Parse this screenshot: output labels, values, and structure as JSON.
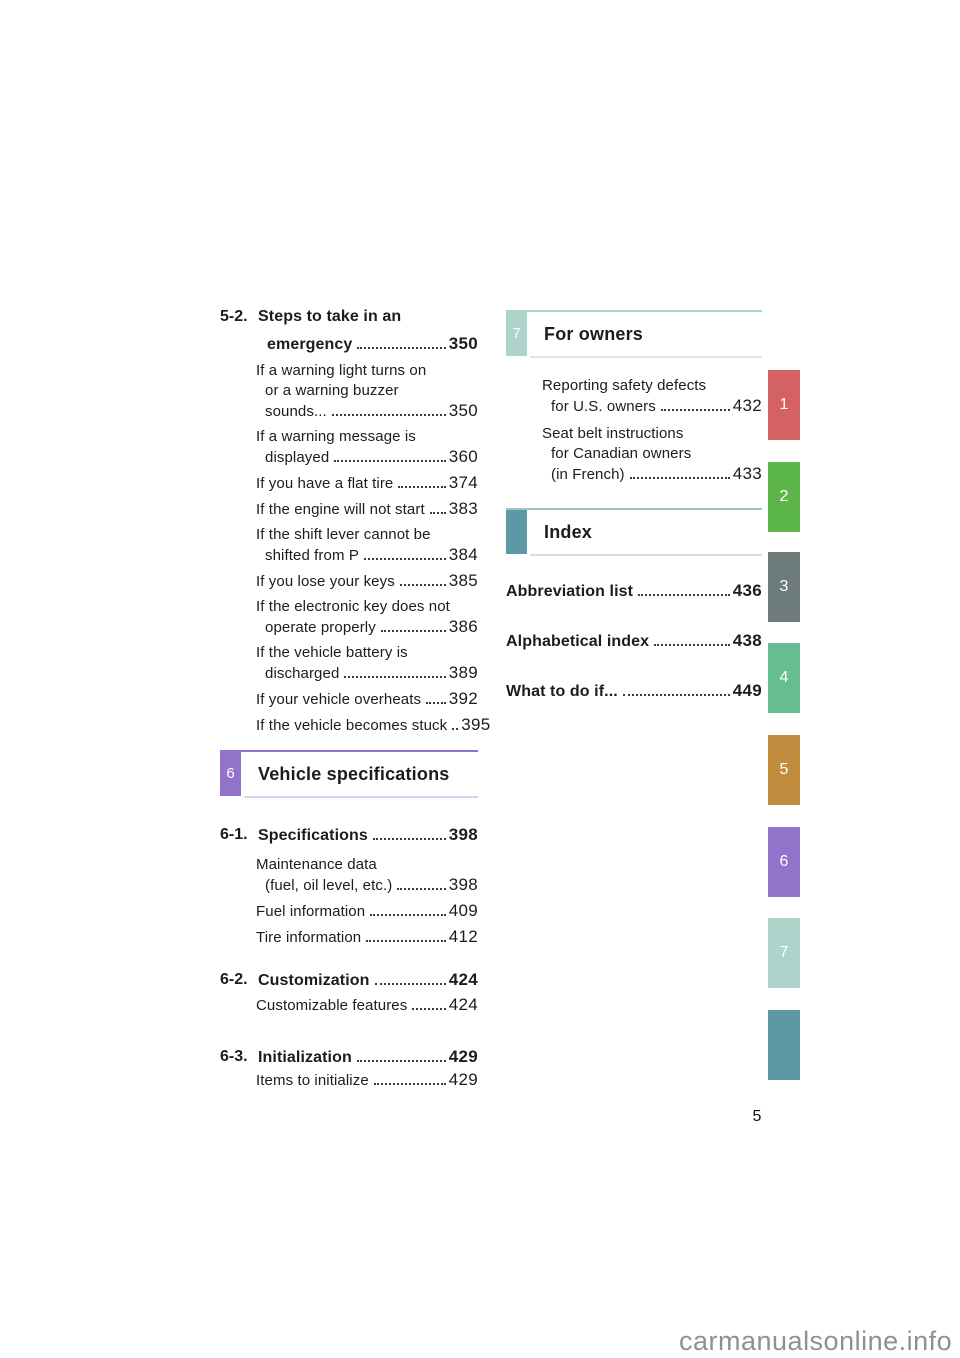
{
  "page": {
    "number": "5",
    "watermark": "carmanualsonline.info"
  },
  "left_column": {
    "section_5_2": {
      "num": "5-2.",
      "lines": [
        "Steps to take in an",
        "emergency"
      ],
      "page": "350"
    },
    "emergency_entries": [
      {
        "lines": [
          "If a warning light turns on",
          "or a warning buzzer",
          "sounds..."
        ],
        "page": "350"
      },
      {
        "lines": [
          "If a warning message is",
          "displayed"
        ],
        "page": "360"
      },
      {
        "lines": [
          "If you have a flat tire"
        ],
        "page": "374"
      },
      {
        "lines": [
          "If the engine will not start"
        ],
        "page": "383"
      },
      {
        "lines": [
          "If the shift lever cannot be",
          "shifted from P"
        ],
        "page": "384"
      },
      {
        "lines": [
          "If you lose your keys"
        ],
        "page": "385"
      },
      {
        "lines": [
          "If the electronic key does not",
          "operate properly"
        ],
        "page": "386"
      },
      {
        "lines": [
          "If the vehicle battery is",
          "discharged"
        ],
        "page": "389"
      },
      {
        "lines": [
          "If your vehicle overheats"
        ],
        "page": "392"
      },
      {
        "lines": [
          "If the vehicle becomes stuck"
        ],
        "page": "395"
      }
    ],
    "section_6_header": {
      "num": "6",
      "title": "Vehicle specifications",
      "color": "#9173c9",
      "topline": "#9173c9",
      "underline": "#d9d2ea"
    },
    "section_6_1": {
      "num": "6-1.",
      "lines": [
        "Specifications"
      ],
      "page": "398"
    },
    "spec_entries": [
      {
        "lines": [
          "Maintenance data",
          "(fuel, oil level, etc.)"
        ],
        "page": "398"
      },
      {
        "lines": [
          "Fuel information"
        ],
        "page": "409"
      },
      {
        "lines": [
          "Tire information"
        ],
        "page": "412"
      }
    ],
    "section_6_2": {
      "num": "6-2.",
      "lines": [
        "Customization"
      ],
      "page": "424"
    },
    "customization_entries": [
      {
        "lines": [
          "Customizable features"
        ],
        "page": "424"
      }
    ],
    "section_6_3": {
      "num": "6-3.",
      "lines": [
        "Initialization"
      ],
      "page": "429"
    },
    "initialization_entries": [
      {
        "lines": [
          "Items to initialize"
        ],
        "page": "429"
      }
    ]
  },
  "right_column": {
    "section_7_header": {
      "num": "7",
      "title": "For owners",
      "color": "#aed3cb",
      "topline": "#aed3cb",
      "underline": "#d8e9e4"
    },
    "owners_entries": [
      {
        "lines": [
          "Reporting safety defects",
          "for U.S. owners"
        ],
        "page": "432"
      },
      {
        "lines": [
          "Seat belt instructions",
          "for Canadian owners",
          "(in French)"
        ],
        "page": "433"
      }
    ],
    "index_header": {
      "num": "",
      "title": "Index",
      "color": "#5d98a5",
      "topline": "#9fc4c6",
      "underline": "#cfe0e2"
    },
    "index_entries": [
      {
        "lines": [
          "Abbreviation list"
        ],
        "page": "436"
      },
      {
        "lines": [
          "Alphabetical index"
        ],
        "page": "438"
      },
      {
        "lines": [
          "What to do if..."
        ],
        "page": "449"
      }
    ]
  },
  "side_tabs": [
    {
      "label": "1",
      "color": "#d56262"
    },
    {
      "label": "2",
      "color": "#5cb548"
    },
    {
      "label": "3",
      "color": "#6e7b7b"
    },
    {
      "label": "4",
      "color": "#65bd90"
    },
    {
      "label": "5",
      "color": "#c08d3e"
    },
    {
      "label": "6",
      "color": "#9173c9"
    },
    {
      "label": "7",
      "color": "#aed3cb"
    },
    {
      "label": "",
      "color": "#5d98a5"
    }
  ]
}
